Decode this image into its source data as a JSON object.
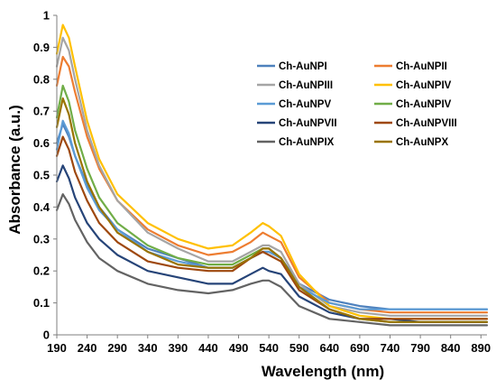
{
  "chart_data": {
    "type": "line",
    "xlabel": "Wavelength (nm)",
    "ylabel": "Absorbance (a.u.)",
    "xlim": [
      190,
      900
    ],
    "ylim": [
      0,
      1
    ],
    "x_ticks": [
      190,
      240,
      290,
      340,
      390,
      440,
      490,
      540,
      590,
      640,
      690,
      740,
      790,
      840,
      890
    ],
    "y_ticks": [
      0,
      0.1,
      0.2,
      0.3,
      0.4,
      0.5,
      0.6,
      0.7,
      0.8,
      0.9,
      1
    ],
    "grid": false,
    "legend_position": "top-right",
    "legend_columns": 2,
    "x": [
      190,
      200,
      210,
      220,
      240,
      260,
      290,
      340,
      390,
      440,
      480,
      510,
      530,
      540,
      560,
      590,
      640,
      690,
      740,
      790,
      840,
      900
    ],
    "series": [
      {
        "name": "Ch-AuNPI",
        "color": "#4e81bd",
        "values": [
          0.6,
          0.66,
          0.62,
          0.56,
          0.47,
          0.4,
          0.33,
          0.27,
          0.24,
          0.21,
          0.21,
          0.24,
          0.26,
          0.26,
          0.24,
          0.16,
          0.11,
          0.09,
          0.08,
          0.08,
          0.08,
          0.08
        ]
      },
      {
        "name": "Ch-AuNPII",
        "color": "#ed7d31",
        "values": [
          0.78,
          0.87,
          0.84,
          0.76,
          0.62,
          0.52,
          0.42,
          0.33,
          0.28,
          0.25,
          0.26,
          0.29,
          0.32,
          0.31,
          0.29,
          0.18,
          0.1,
          0.08,
          0.07,
          0.07,
          0.07,
          0.07
        ]
      },
      {
        "name": "Ch-AuNPIII",
        "color": "#a5a5a5",
        "values": [
          0.84,
          0.93,
          0.89,
          0.8,
          0.64,
          0.53,
          0.42,
          0.32,
          0.27,
          0.23,
          0.23,
          0.26,
          0.28,
          0.28,
          0.26,
          0.16,
          0.09,
          0.07,
          0.06,
          0.06,
          0.06,
          0.06
        ]
      },
      {
        "name": "Ch-AuNPIV",
        "color": "#ffc000",
        "values": [
          0.88,
          0.97,
          0.93,
          0.84,
          0.67,
          0.55,
          0.44,
          0.35,
          0.3,
          0.27,
          0.28,
          0.32,
          0.35,
          0.34,
          0.31,
          0.19,
          0.09,
          0.06,
          0.05,
          0.05,
          0.05,
          0.05
        ]
      },
      {
        "name": "Ch-AuNPV",
        "color": "#5b9bd5",
        "values": [
          0.58,
          0.67,
          0.63,
          0.56,
          0.46,
          0.39,
          0.33,
          0.26,
          0.23,
          0.21,
          0.21,
          0.24,
          0.26,
          0.26,
          0.24,
          0.15,
          0.1,
          0.08,
          0.08,
          0.08,
          0.08,
          0.08
        ]
      },
      {
        "name": "Ch-AuNPIV",
        "color": "#70ad47",
        "values": [
          0.68,
          0.78,
          0.73,
          0.64,
          0.52,
          0.43,
          0.35,
          0.28,
          0.24,
          0.22,
          0.22,
          0.25,
          0.27,
          0.27,
          0.24,
          0.15,
          0.08,
          0.05,
          0.04,
          0.04,
          0.04,
          0.04
        ]
      },
      {
        "name": "Ch-AuNPVII",
        "color": "#264478",
        "values": [
          0.48,
          0.53,
          0.49,
          0.43,
          0.35,
          0.3,
          0.25,
          0.2,
          0.18,
          0.16,
          0.16,
          0.19,
          0.21,
          0.2,
          0.19,
          0.12,
          0.07,
          0.05,
          0.05,
          0.04,
          0.04,
          0.04
        ]
      },
      {
        "name": "Ch-AuNPVIII",
        "color": "#9e480e",
        "values": [
          0.56,
          0.62,
          0.58,
          0.51,
          0.42,
          0.35,
          0.29,
          0.23,
          0.21,
          0.2,
          0.2,
          0.24,
          0.26,
          0.25,
          0.23,
          0.14,
          0.08,
          0.05,
          0.05,
          0.05,
          0.05,
          0.05
        ]
      },
      {
        "name": "Ch-AuNPIX",
        "color": "#636363",
        "values": [
          0.39,
          0.44,
          0.41,
          0.36,
          0.29,
          0.24,
          0.2,
          0.16,
          0.14,
          0.13,
          0.14,
          0.16,
          0.17,
          0.17,
          0.15,
          0.09,
          0.05,
          0.04,
          0.03,
          0.03,
          0.03,
          0.03
        ]
      },
      {
        "name": "Ch-AuNPX",
        "color": "#997300",
        "values": [
          0.65,
          0.74,
          0.69,
          0.6,
          0.48,
          0.4,
          0.32,
          0.26,
          0.22,
          0.21,
          0.21,
          0.24,
          0.27,
          0.27,
          0.24,
          0.15,
          0.08,
          0.05,
          0.04,
          0.04,
          0.04,
          0.04
        ]
      }
    ]
  }
}
